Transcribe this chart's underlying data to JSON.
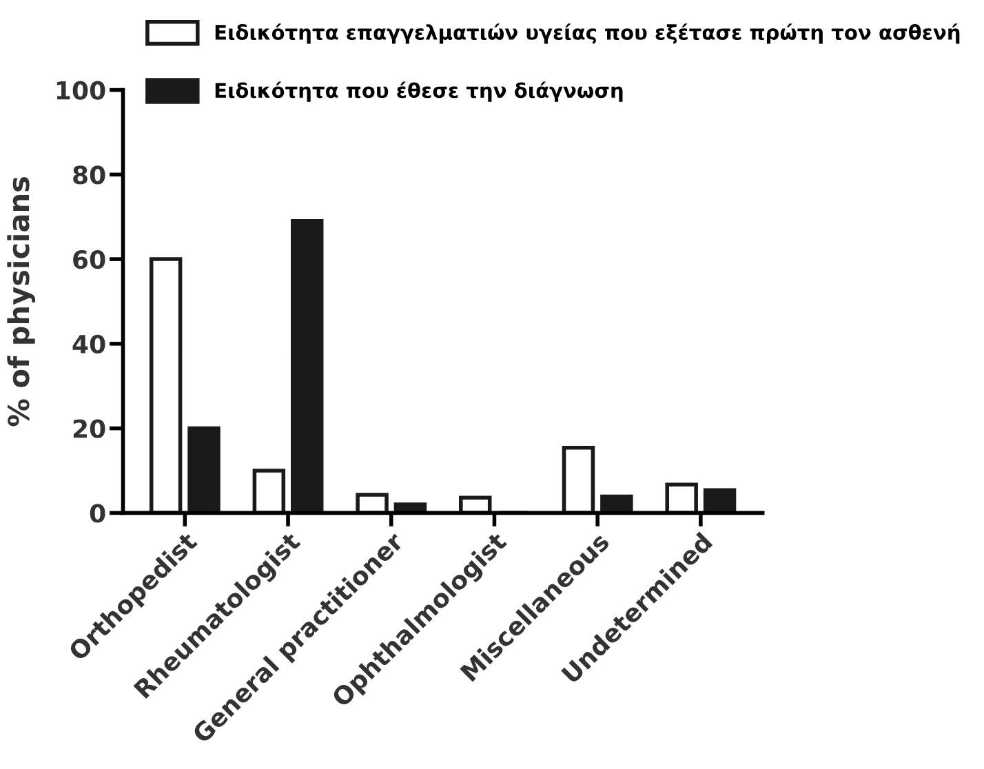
{
  "chart_data": {
    "type": "bar",
    "ylabel": "% of physicians",
    "categories": [
      "Orthopedist",
      "Rheumatologist",
      "General practitioner",
      "Ophthalmologist",
      "Miscellaneous",
      "Undetermined"
    ],
    "series": [
      {
        "name": "Ειδικότητα επαγγελματιών υγείας που εξέτασε πρώτη τον ασθενή",
        "color": "#ffffff",
        "values": [
          60,
          10,
          4.3,
          3.6,
          15.4,
          6.7
        ]
      },
      {
        "name": "Ειδικότητα που έθεσε την διάγνωση",
        "color": "#1a1a1a",
        "values": [
          20,
          69,
          2,
          0,
          3.9,
          5.4
        ]
      }
    ],
    "ylim": [
      0,
      100
    ],
    "yticks": [
      0,
      20,
      40,
      60,
      80,
      100
    ],
    "grid": false,
    "legend": "top right"
  }
}
